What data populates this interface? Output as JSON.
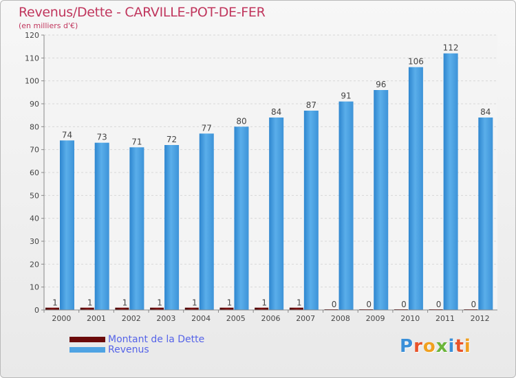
{
  "header": {
    "title": "Revenus/Dette - CARVILLE-POT-DE-FER",
    "subtitle": "(en milliers d'€)"
  },
  "legend": {
    "items": [
      {
        "label": "Montant de la Dette",
        "color": "#6b0a0a"
      },
      {
        "label": "Revenus",
        "color": "#4fa3e3"
      }
    ]
  },
  "logo": {
    "text": "Proxiti",
    "colors": [
      "#3a8fd8",
      "#e8532a",
      "#f0a020",
      "#6bb53a",
      "#3a8fd8",
      "#e8532a",
      "#f0a020"
    ]
  },
  "chart_data": {
    "type": "bar",
    "title": "Revenus/Dette - CARVILLE-POT-DE-FER",
    "subtitle": "(en milliers d'€)",
    "categories": [
      "2000",
      "2001",
      "2002",
      "2003",
      "2004",
      "2005",
      "2006",
      "2007",
      "2008",
      "2009",
      "2010",
      "2011",
      "2012"
    ],
    "series": [
      {
        "name": "Montant de la Dette",
        "color": "#6b0a0a",
        "values": [
          1,
          1,
          1,
          1,
          1,
          1,
          1,
          1,
          0,
          0,
          0,
          0,
          0
        ]
      },
      {
        "name": "Revenus",
        "color": "#4fa3e3",
        "values": [
          74,
          73,
          71,
          72,
          77,
          80,
          84,
          87,
          91,
          96,
          106,
          112,
          84
        ]
      }
    ],
    "ylim": [
      0,
      120
    ],
    "yticks": [
      0,
      10,
      20,
      30,
      40,
      50,
      60,
      70,
      80,
      90,
      100,
      110,
      120
    ],
    "grid": true,
    "legend_position": "bottom-left"
  }
}
